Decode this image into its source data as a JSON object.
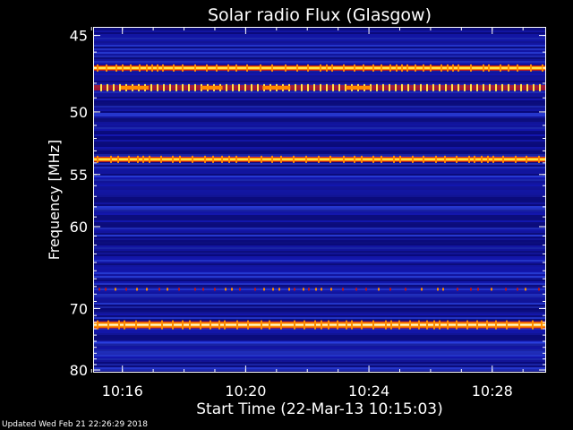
{
  "chart_data": {
    "type": "heatmap",
    "title": "Solar radio Flux (Glasgow)",
    "xlabel": "Start Time (22-Mar-13 10:15:03)",
    "ylabel": "Frequency [MHz]",
    "x_range_minutes_after_start": [
      0,
      14.7
    ],
    "x_ticks": [
      {
        "label": "10:16",
        "minutes_after_start": 0.95
      },
      {
        "label": "10:20",
        "minutes_after_start": 4.95
      },
      {
        "label": "10:24",
        "minutes_after_start": 8.95
      },
      {
        "label": "10:28",
        "minutes_after_start": 12.95
      }
    ],
    "y_ticks": [
      "45",
      "50",
      "55",
      "60",
      "70",
      "80"
    ],
    "y_range_mhz": [
      44.5,
      80.5
    ],
    "y_scale": "reciprocal",
    "colormap": [
      "#08087a",
      "#1418b8",
      "#2a40e0",
      "#c01818",
      "#ff8c00",
      "#ffe84a",
      "#ffffd0"
    ],
    "background_color": "#10127e",
    "emission_bands_mhz": [
      {
        "mhz": 47.0,
        "intensity": "high",
        "style": "continuous"
      },
      {
        "mhz": 48.3,
        "intensity": "high",
        "style": "pulsed"
      },
      {
        "mhz": 53.7,
        "intensity": "high",
        "style": "continuous"
      },
      {
        "mhz": 67.3,
        "intensity": "low",
        "style": "speckled"
      },
      {
        "mhz": 72.4,
        "intensity": "very high",
        "style": "continuous"
      },
      {
        "mhz": 75.2,
        "intensity": "low",
        "style": "continuous"
      }
    ]
  },
  "footer": {
    "updated": "Updated Wed Feb 21 22:26:29 2018"
  }
}
